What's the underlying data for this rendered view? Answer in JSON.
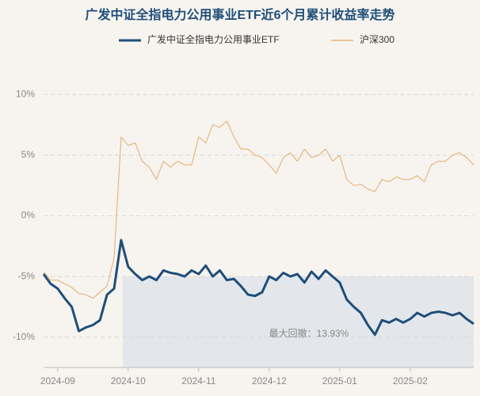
{
  "chart_data": {
    "type": "line",
    "title": "广发中证全指电力公用事业ETF近6个月累计收益率走势",
    "annotation": "最大回撤：13.93%",
    "categories": [
      null,
      null,
      "2024-09",
      null,
      null,
      null,
      null,
      null,
      null,
      null,
      null,
      null,
      "2024-10",
      null,
      null,
      null,
      null,
      null,
      null,
      null,
      null,
      null,
      "2024-11",
      null,
      null,
      null,
      null,
      null,
      null,
      null,
      null,
      null,
      "2024-12",
      null,
      null,
      null,
      null,
      null,
      null,
      null,
      null,
      null,
      "2025-01",
      null,
      null,
      null,
      null,
      null,
      null,
      null,
      null,
      null,
      "2025-02",
      null,
      null,
      null,
      null,
      null,
      null,
      null,
      null,
      null
    ],
    "series": [
      {
        "name": "广发中证全指电力公用事业ETF",
        "color": "#1f4e79",
        "values": [
          -4.8,
          -5.6,
          -6.0,
          -6.8,
          -7.5,
          -9.5,
          -9.2,
          -9.0,
          -8.6,
          -6.5,
          -6.0,
          -2.0,
          -4.2,
          -4.8,
          -5.3,
          -5.0,
          -5.3,
          -4.5,
          -4.7,
          -4.8,
          -5.0,
          -4.5,
          -4.8,
          -4.1,
          -5.0,
          -4.5,
          -5.3,
          -5.2,
          -5.8,
          -6.5,
          -6.6,
          -6.3,
          -5.0,
          -5.3,
          -4.7,
          -5.0,
          -4.8,
          -5.5,
          -4.6,
          -5.2,
          -4.5,
          -5.0,
          -5.5,
          -6.9,
          -7.5,
          -8.0,
          -9.0,
          -9.8,
          -8.6,
          -8.8,
          -8.5,
          -8.8,
          -8.5,
          -8.0,
          -8.3,
          -8.0,
          -7.9,
          -8.0,
          -8.2,
          -8.0,
          -8.5,
          -8.9
        ]
      },
      {
        "name": "沪深300",
        "color": "#e8b57f",
        "values": [
          -4.6,
          -5.3,
          -5.3,
          -5.6,
          -5.9,
          -6.4,
          -6.5,
          -6.8,
          -6.3,
          -5.8,
          -3.5,
          6.5,
          5.8,
          6.0,
          4.5,
          4.0,
          3.0,
          4.5,
          4.0,
          4.5,
          4.2,
          4.2,
          6.5,
          6.0,
          7.5,
          7.3,
          7.8,
          6.5,
          5.5,
          5.5,
          5.0,
          4.8,
          4.2,
          3.5,
          4.8,
          5.2,
          4.5,
          5.5,
          4.8,
          5.0,
          5.5,
          4.5,
          5.0,
          3.0,
          2.5,
          2.6,
          2.2,
          2.0,
          3.0,
          2.8,
          3.2,
          3.0,
          3.0,
          3.3,
          2.8,
          4.2,
          4.5,
          4.5,
          5.0,
          5.2,
          4.8,
          4.2
        ]
      }
    ],
    "ylim": [
      -12.5,
      12.5
    ],
    "yticks": [
      {
        "value": -10,
        "label": "-10%"
      },
      {
        "value": -5,
        "label": "-5%"
      },
      {
        "value": 0,
        "label": "0%"
      },
      {
        "value": 5,
        "label": "5%"
      },
      {
        "value": 10,
        "label": "10%"
      }
    ],
    "grid": true
  }
}
